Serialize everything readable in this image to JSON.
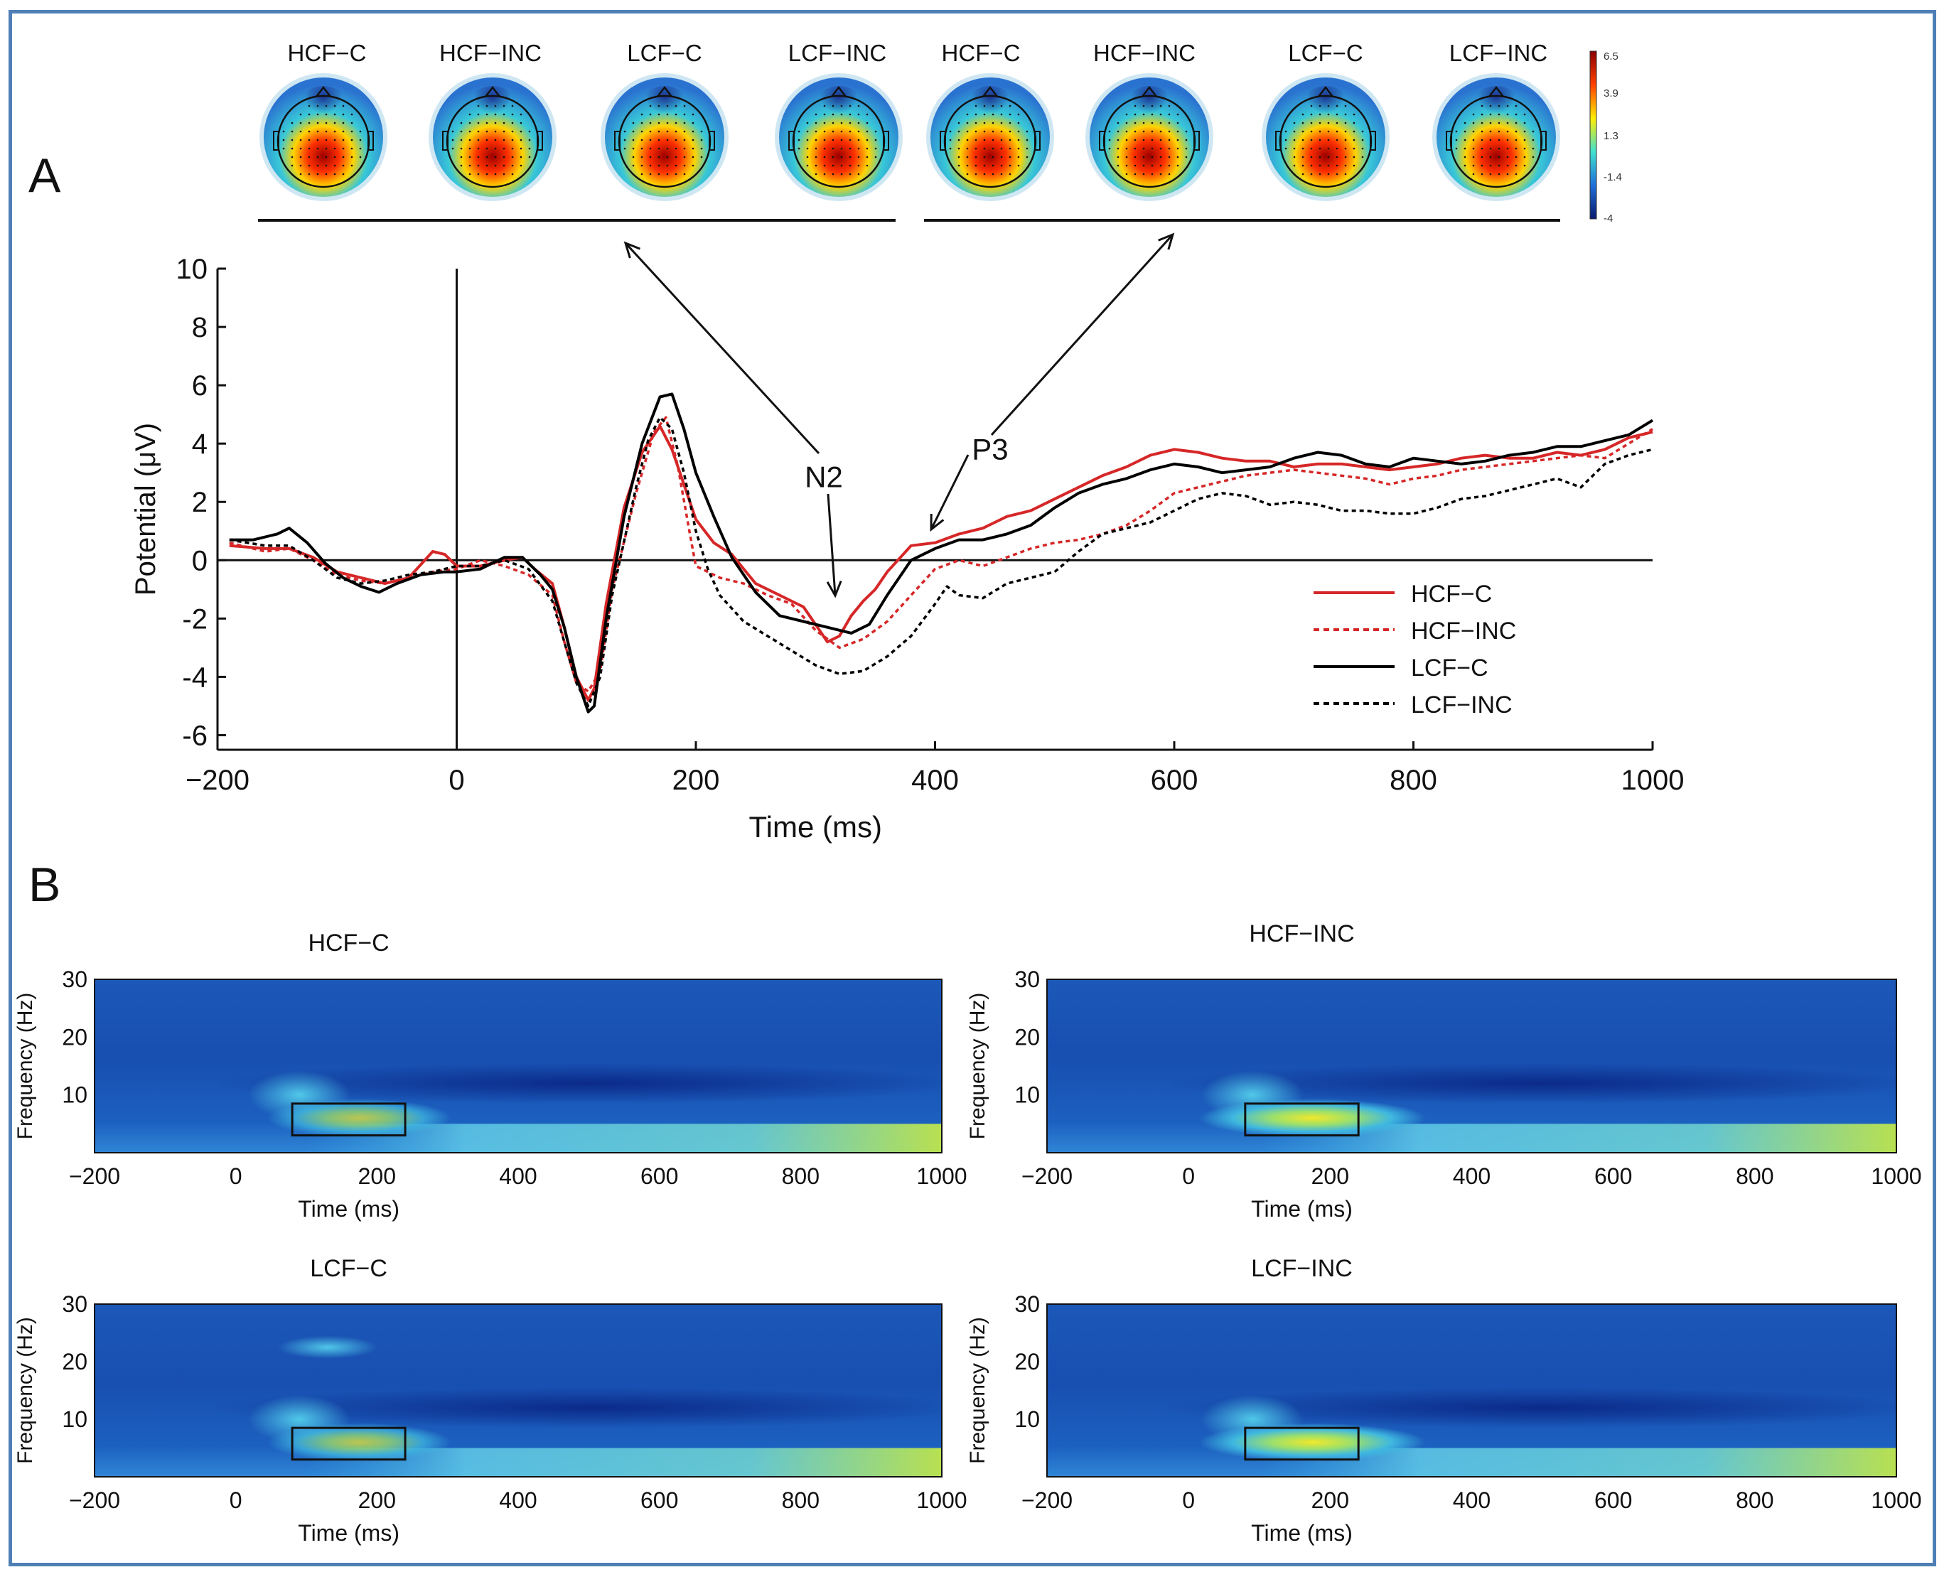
{
  "panel_labels": {
    "a": "A",
    "b": "B"
  },
  "topomaps": {
    "labels": [
      "HCF−C",
      "HCF−INC",
      "LCF−C",
      "LCF−INC",
      "HCF−C",
      "HCF−INC",
      "LCF−C",
      "LCF−INC"
    ],
    "colorbar_ticks": [
      "6.5",
      "3.9",
      "1.3",
      "-1.4",
      "-4"
    ],
    "colorbar_colors": [
      "#8b0000",
      "#ff4000",
      "#ffee00",
      "#40e0d0",
      "#1f6fd8",
      "#0a1a70"
    ]
  },
  "chart_data": [
    {
      "type": "line",
      "title": "",
      "xlabel": "Time (ms)",
      "ylabel": "Potential (μV)",
      "xlim": [
        -200,
        1000
      ],
      "ylim": [
        -6.5,
        10
      ],
      "xticks": [
        -200,
        0,
        200,
        400,
        600,
        800,
        1000
      ],
      "yticks": [
        10,
        8,
        6,
        4,
        2,
        0,
        -2,
        -4,
        -6
      ],
      "annotations": {
        "n2": "N2",
        "p3": "P3"
      },
      "legend": {
        "placement": "bottom-right"
      },
      "series": [
        {
          "name": "HCF−C",
          "color": "#d62728",
          "dash": "solid",
          "x": [
            -190,
            -160,
            -140,
            -120,
            -100,
            -80,
            -60,
            -40,
            -20,
            -10,
            0,
            20,
            40,
            55,
            65,
            80,
            90,
            100,
            110,
            115,
            125,
            140,
            155,
            170,
            180,
            190,
            200,
            215,
            230,
            250,
            270,
            290,
            300,
            310,
            320,
            330,
            340,
            350,
            360,
            380,
            400,
            420,
            440,
            460,
            480,
            500,
            520,
            540,
            560,
            580,
            600,
            620,
            640,
            660,
            680,
            700,
            720,
            740,
            760,
            780,
            800,
            820,
            840,
            860,
            880,
            900,
            920,
            940,
            960,
            980,
            1000
          ],
          "y": [
            0.5,
            0.4,
            0.4,
            0.1,
            -0.4,
            -0.6,
            -0.8,
            -0.6,
            0.3,
            0.2,
            -0.2,
            -0.2,
            0,
            0.1,
            -0.3,
            -0.8,
            -2.3,
            -4,
            -4.8,
            -4.4,
            -1.5,
            1.8,
            3.7,
            4.6,
            3.8,
            2.6,
            1.4,
            0.6,
            0.2,
            -0.8,
            -1.2,
            -1.6,
            -2.2,
            -2.8,
            -2.6,
            -1.9,
            -1.4,
            -1,
            -0.4,
            0.5,
            0.6,
            0.9,
            1.1,
            1.5,
            1.7,
            2.1,
            2.5,
            2.9,
            3.2,
            3.6,
            3.8,
            3.7,
            3.5,
            3.4,
            3.4,
            3.2,
            3.3,
            3.3,
            3.2,
            3.1,
            3.2,
            3.3,
            3.5,
            3.6,
            3.5,
            3.5,
            3.7,
            3.6,
            3.8,
            4.2,
            4.4
          ]
        },
        {
          "name": "HCF−INC",
          "color": "#d62728",
          "dash": "dotted",
          "x": [
            -190,
            -160,
            -140,
            -120,
            -100,
            -80,
            -60,
            -40,
            -20,
            0,
            20,
            40,
            60,
            80,
            90,
            100,
            110,
            120,
            130,
            150,
            165,
            175,
            185,
            195,
            200,
            210,
            220,
            240,
            260,
            280,
            300,
            320,
            340,
            360,
            380,
            400,
            420,
            440,
            460,
            480,
            500,
            520,
            540,
            560,
            580,
            600,
            620,
            640,
            660,
            680,
            700,
            720,
            740,
            760,
            780,
            800,
            820,
            840,
            860,
            880,
            900,
            920,
            940,
            960,
            980,
            1000
          ],
          "y": [
            0.6,
            0.3,
            0.4,
            0,
            -0.5,
            -0.7,
            -0.8,
            -0.6,
            -0.4,
            -0.3,
            0,
            -0.2,
            -0.5,
            -1.2,
            -2.8,
            -4.2,
            -4.5,
            -3.8,
            -1,
            2.3,
            4.4,
            4.9,
            3.2,
            0.9,
            -0.2,
            -0.4,
            -0.6,
            -0.8,
            -1.2,
            -1.5,
            -2.4,
            -3,
            -2.7,
            -2.1,
            -1.2,
            -0.3,
            0,
            -0.2,
            0.1,
            0.4,
            0.6,
            0.7,
            0.9,
            1.2,
            1.7,
            2.3,
            2.5,
            2.7,
            2.9,
            3,
            3.1,
            3,
            2.9,
            2.8,
            2.6,
            2.8,
            2.9,
            3.1,
            3.2,
            3.3,
            3.4,
            3.5,
            3.6,
            3.5,
            4,
            4.5
          ]
        },
        {
          "name": "LCF−C",
          "color": "#000000",
          "dash": "solid",
          "x": [
            -190,
            -170,
            -150,
            -140,
            -125,
            -110,
            -95,
            -80,
            -65,
            -50,
            -30,
            -10,
            0,
            20,
            40,
            55,
            70,
            80,
            90,
            100,
            110,
            115,
            125,
            140,
            155,
            170,
            180,
            190,
            200,
            215,
            230,
            250,
            270,
            290,
            310,
            330,
            345,
            360,
            380,
            400,
            420,
            440,
            460,
            480,
            500,
            520,
            540,
            560,
            580,
            600,
            620,
            640,
            660,
            680,
            700,
            720,
            740,
            760,
            780,
            800,
            820,
            840,
            860,
            880,
            900,
            920,
            940,
            960,
            980,
            1000
          ],
          "y": [
            0.7,
            0.7,
            0.9,
            1.1,
            0.6,
            -0.1,
            -0.6,
            -0.9,
            -1.1,
            -0.8,
            -0.5,
            -0.4,
            -0.4,
            -0.3,
            0.1,
            0.1,
            -0.5,
            -1,
            -2.3,
            -4,
            -5.2,
            -5,
            -2,
            1.5,
            4,
            5.6,
            5.7,
            4.5,
            3,
            1.5,
            0.1,
            -1.1,
            -1.9,
            -2.1,
            -2.3,
            -2.5,
            -2.2,
            -1.2,
            0,
            0.4,
            0.7,
            0.7,
            0.9,
            1.2,
            1.8,
            2.3,
            2.6,
            2.8,
            3.1,
            3.3,
            3.2,
            3,
            3.1,
            3.2,
            3.5,
            3.7,
            3.6,
            3.3,
            3.2,
            3.5,
            3.4,
            3.3,
            3.4,
            3.6,
            3.7,
            3.9,
            3.9,
            4.1,
            4.3,
            4.8
          ]
        },
        {
          "name": "LCF−INC",
          "color": "#000000",
          "dash": "dotted",
          "x": [
            -190,
            -160,
            -140,
            -120,
            -100,
            -80,
            -60,
            -40,
            -20,
            0,
            20,
            40,
            60,
            80,
            90,
            100,
            110,
            120,
            130,
            150,
            160,
            170,
            180,
            190,
            200,
            210,
            220,
            240,
            260,
            280,
            300,
            320,
            340,
            360,
            380,
            400,
            410,
            420,
            440,
            460,
            480,
            500,
            520,
            540,
            560,
            580,
            600,
            620,
            640,
            660,
            680,
            700,
            720,
            740,
            760,
            780,
            800,
            820,
            840,
            860,
            880,
            900,
            920,
            940,
            960,
            980,
            1000
          ],
          "y": [
            0.7,
            0.5,
            0.5,
            0,
            -0.6,
            -0.8,
            -0.7,
            -0.5,
            -0.4,
            -0.2,
            -0.2,
            0,
            -0.3,
            -1.4,
            -2.8,
            -4.2,
            -5,
            -4,
            -1.2,
            2.5,
            4.1,
            4.9,
            4.5,
            3,
            1,
            -0.3,
            -1.2,
            -2.1,
            -2.6,
            -3.1,
            -3.6,
            -3.9,
            -3.8,
            -3.3,
            -2.6,
            -1.5,
            -0.9,
            -1.2,
            -1.3,
            -0.8,
            -0.6,
            -0.4,
            0.3,
            0.9,
            1.1,
            1.3,
            1.7,
            2.1,
            2.3,
            2.2,
            1.9,
            2,
            1.9,
            1.7,
            1.7,
            1.6,
            1.6,
            1.8,
            2.1,
            2.2,
            2.4,
            2.6,
            2.8,
            2.5,
            3.3,
            3.6,
            3.8
          ]
        }
      ]
    },
    {
      "type": "heatmap",
      "panels": [
        {
          "title": "HCF−C",
          "xlabel": "Time (ms)",
          "ylabel": "Frequency (Hz)",
          "xlim": [
            -200,
            1000
          ],
          "ylim": [
            0,
            30
          ],
          "xticks": [
            -200,
            0,
            200,
            400,
            600,
            800,
            1000
          ],
          "yticks": [
            30,
            20,
            10
          ],
          "roi": {
            "time": [
              80,
              240
            ],
            "freq": [
              3,
              8.5
            ]
          }
        },
        {
          "title": "HCF−INC",
          "xlabel": "Time (ms)",
          "ylabel": "Frequency (Hz)",
          "xlim": [
            -200,
            1000
          ],
          "ylim": [
            0,
            30
          ],
          "xticks": [
            -200,
            0,
            200,
            400,
            600,
            800,
            1000
          ],
          "yticks": [
            30,
            20,
            10
          ],
          "roi": {
            "time": [
              80,
              240
            ],
            "freq": [
              3,
              8.5
            ]
          }
        },
        {
          "title": "LCF−C",
          "xlabel": "Time (ms)",
          "ylabel": "Frequency (Hz)",
          "xlim": [
            -200,
            1000
          ],
          "ylim": [
            0,
            30
          ],
          "xticks": [
            -200,
            0,
            200,
            400,
            600,
            800,
            1000
          ],
          "yticks": [
            30,
            20,
            10
          ],
          "roi": {
            "time": [
              80,
              240
            ],
            "freq": [
              3,
              8.5
            ]
          }
        },
        {
          "title": "LCF−INC",
          "xlabel": "Time (ms)",
          "ylabel": "Frequency (Hz)",
          "xlim": [
            -200,
            1000
          ],
          "ylim": [
            0,
            30
          ],
          "xticks": [
            -200,
            0,
            200,
            400,
            600,
            800,
            1000
          ],
          "yticks": [
            30,
            20,
            10
          ],
          "roi": {
            "time": [
              80,
              240
            ],
            "freq": [
              3,
              8.5
            ]
          }
        }
      ]
    }
  ]
}
